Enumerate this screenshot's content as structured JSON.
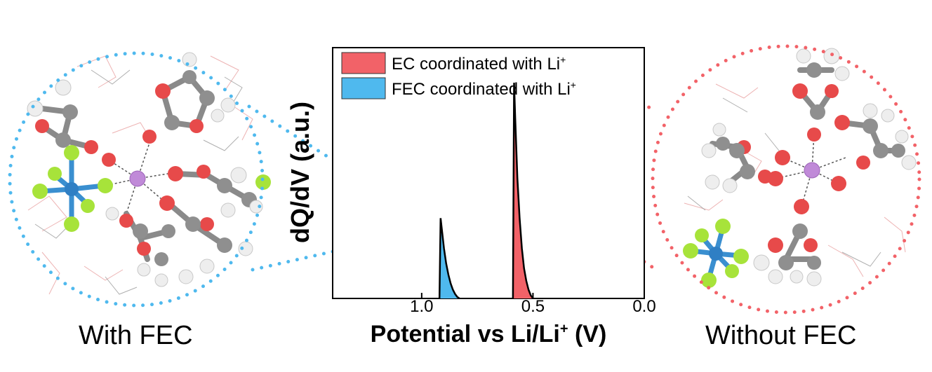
{
  "chart_data": {
    "type": "area",
    "xlabel": "Potential vs Li/Li",
    "xlabel_sup": "+",
    "xlabel_unit": " (V)",
    "ylabel": "dQ/dV (a.u.)",
    "x_reversed": true,
    "xlim": [
      1.4,
      0.0
    ],
    "ylim": [
      0,
      1
    ],
    "grid": false,
    "xticks": [
      {
        "value": 1.0,
        "label": "1.0"
      },
      {
        "value": 0.5,
        "label": "0.5"
      },
      {
        "value": 0.0,
        "label": "0.0"
      }
    ],
    "legend_position": "top-left",
    "series": [
      {
        "name": "EC coordinated with Li",
        "name_sup": "+",
        "color": "#f26268",
        "x": [
          0.59,
          0.585,
          0.58,
          0.57,
          0.56,
          0.55,
          0.54,
          0.53,
          0.52,
          0.51,
          0.5
        ],
        "y": [
          0.0,
          0.86,
          0.72,
          0.48,
          0.32,
          0.2,
          0.12,
          0.07,
          0.035,
          0.012,
          0.0
        ]
      },
      {
        "name": "FEC coordinated with Li",
        "name_sup": "+",
        "color": "#4fb9ee",
        "x": [
          0.92,
          0.915,
          0.91,
          0.9,
          0.89,
          0.88,
          0.87,
          0.86,
          0.85,
          0.84,
          0.83
        ],
        "y": [
          0.0,
          0.32,
          0.28,
          0.2,
          0.14,
          0.095,
          0.06,
          0.035,
          0.018,
          0.006,
          0.0
        ]
      }
    ]
  },
  "captions": {
    "left": "With FEC",
    "right": "Without FEC"
  },
  "colors": {
    "fec_circle": "#4fb9ee",
    "ec_circle": "#f26268"
  }
}
